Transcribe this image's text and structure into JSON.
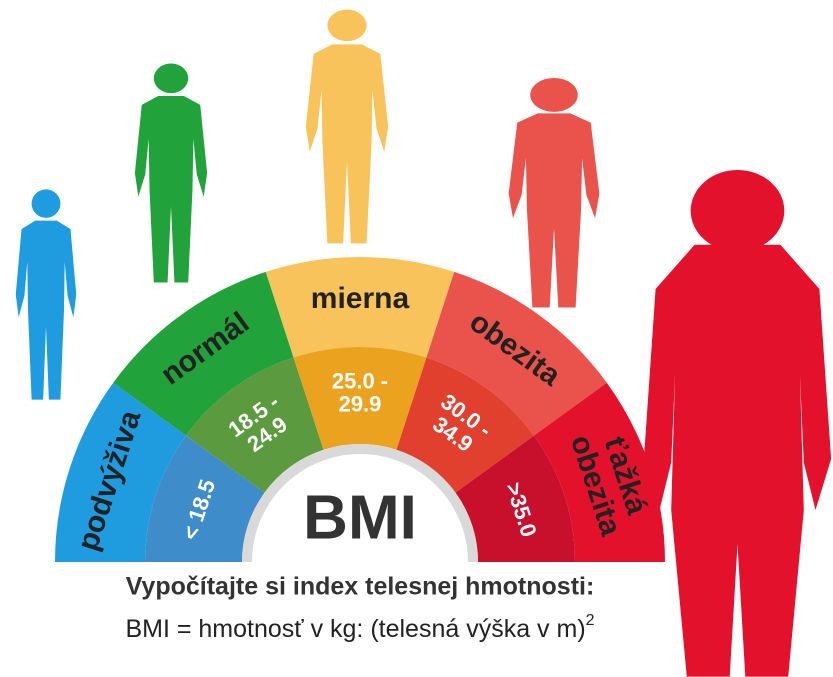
{
  "segments": [
    {
      "label": [
        "podvýživa"
      ],
      "range": [
        "< 18.5"
      ],
      "color": "#1f9be0",
      "inner_color": "#3f8cca"
    },
    {
      "label": [
        "normál"
      ],
      "range": [
        "18.5 -",
        "24.9"
      ],
      "color": "#22a23a",
      "inner_color": "#5b9a3e"
    },
    {
      "label": [
        "mierna"
      ],
      "range": [
        "25.0 -",
        "29.9"
      ],
      "color": "#f9c35c",
      "inner_color": "#eba21f"
    },
    {
      "label": [
        "obezita"
      ],
      "range": [
        "30.0 -",
        "34.9"
      ],
      "color": "#e9534b",
      "inner_color": "#e2402f"
    },
    {
      "label": [
        "ťažká",
        "obezita"
      ],
      "range": [
        ">35.0"
      ],
      "color": "#e3112b",
      "inner_color": "#c80f2c"
    }
  ],
  "center": "BMI",
  "caption": "Vypočítajte si index telesnej hmotnosti:",
  "formula": "BMI = hmotnosť v kg: (telesná výška v m)",
  "formula_exponent": "2"
}
